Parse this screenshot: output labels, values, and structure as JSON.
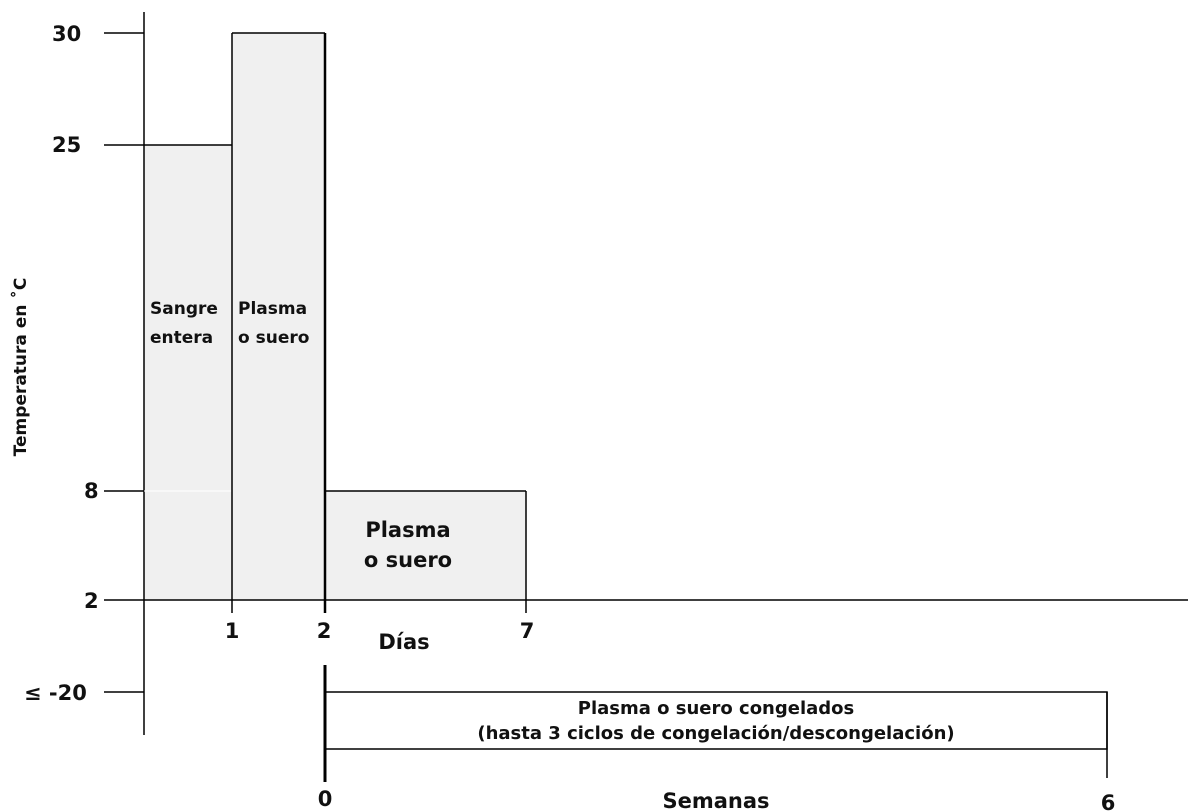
{
  "y_axis": {
    "label": "Temperatura en ˚C",
    "ticks": [
      "30",
      "25",
      "8",
      "2",
      "≤ -20"
    ]
  },
  "days_axis": {
    "label": "Días",
    "ticks": [
      "1",
      "2",
      "7"
    ]
  },
  "weeks_axis": {
    "label": "Semanas",
    "ticks": [
      "0",
      "6"
    ]
  },
  "regions": {
    "whole_blood": {
      "line1": "Sangre",
      "line2": "entera"
    },
    "plasma_room": {
      "line1": "Plasma",
      "line2": "o suero"
    },
    "plasma_fridge": {
      "line1": "Plasma",
      "line2": "o suero"
    },
    "plasma_frozen": {
      "line1": "Plasma o suero congelados",
      "line2": "(hasta 3 ciclos de congelación/descongelación)"
    }
  },
  "colors": {
    "fill": "#f0f0f0",
    "line": "#000000"
  },
  "chart_data": {
    "type": "step-area",
    "storage_conditions": [
      {
        "sample": "Sangre entera",
        "temp_min_c": 2,
        "temp_max_c": 25,
        "duration_max_days": 1
      },
      {
        "sample": "Plasma o suero",
        "temp_min_c": 2,
        "temp_max_c": 30,
        "duration_max_days": 2
      },
      {
        "sample": "Plasma o suero",
        "temp_min_c": 2,
        "temp_max_c": 8,
        "duration_max_days": 7
      },
      {
        "sample": "Plasma o suero congelados",
        "temp_max_c": -20,
        "duration_max_weeks": 6,
        "max_freeze_thaw_cycles": 3
      }
    ]
  }
}
